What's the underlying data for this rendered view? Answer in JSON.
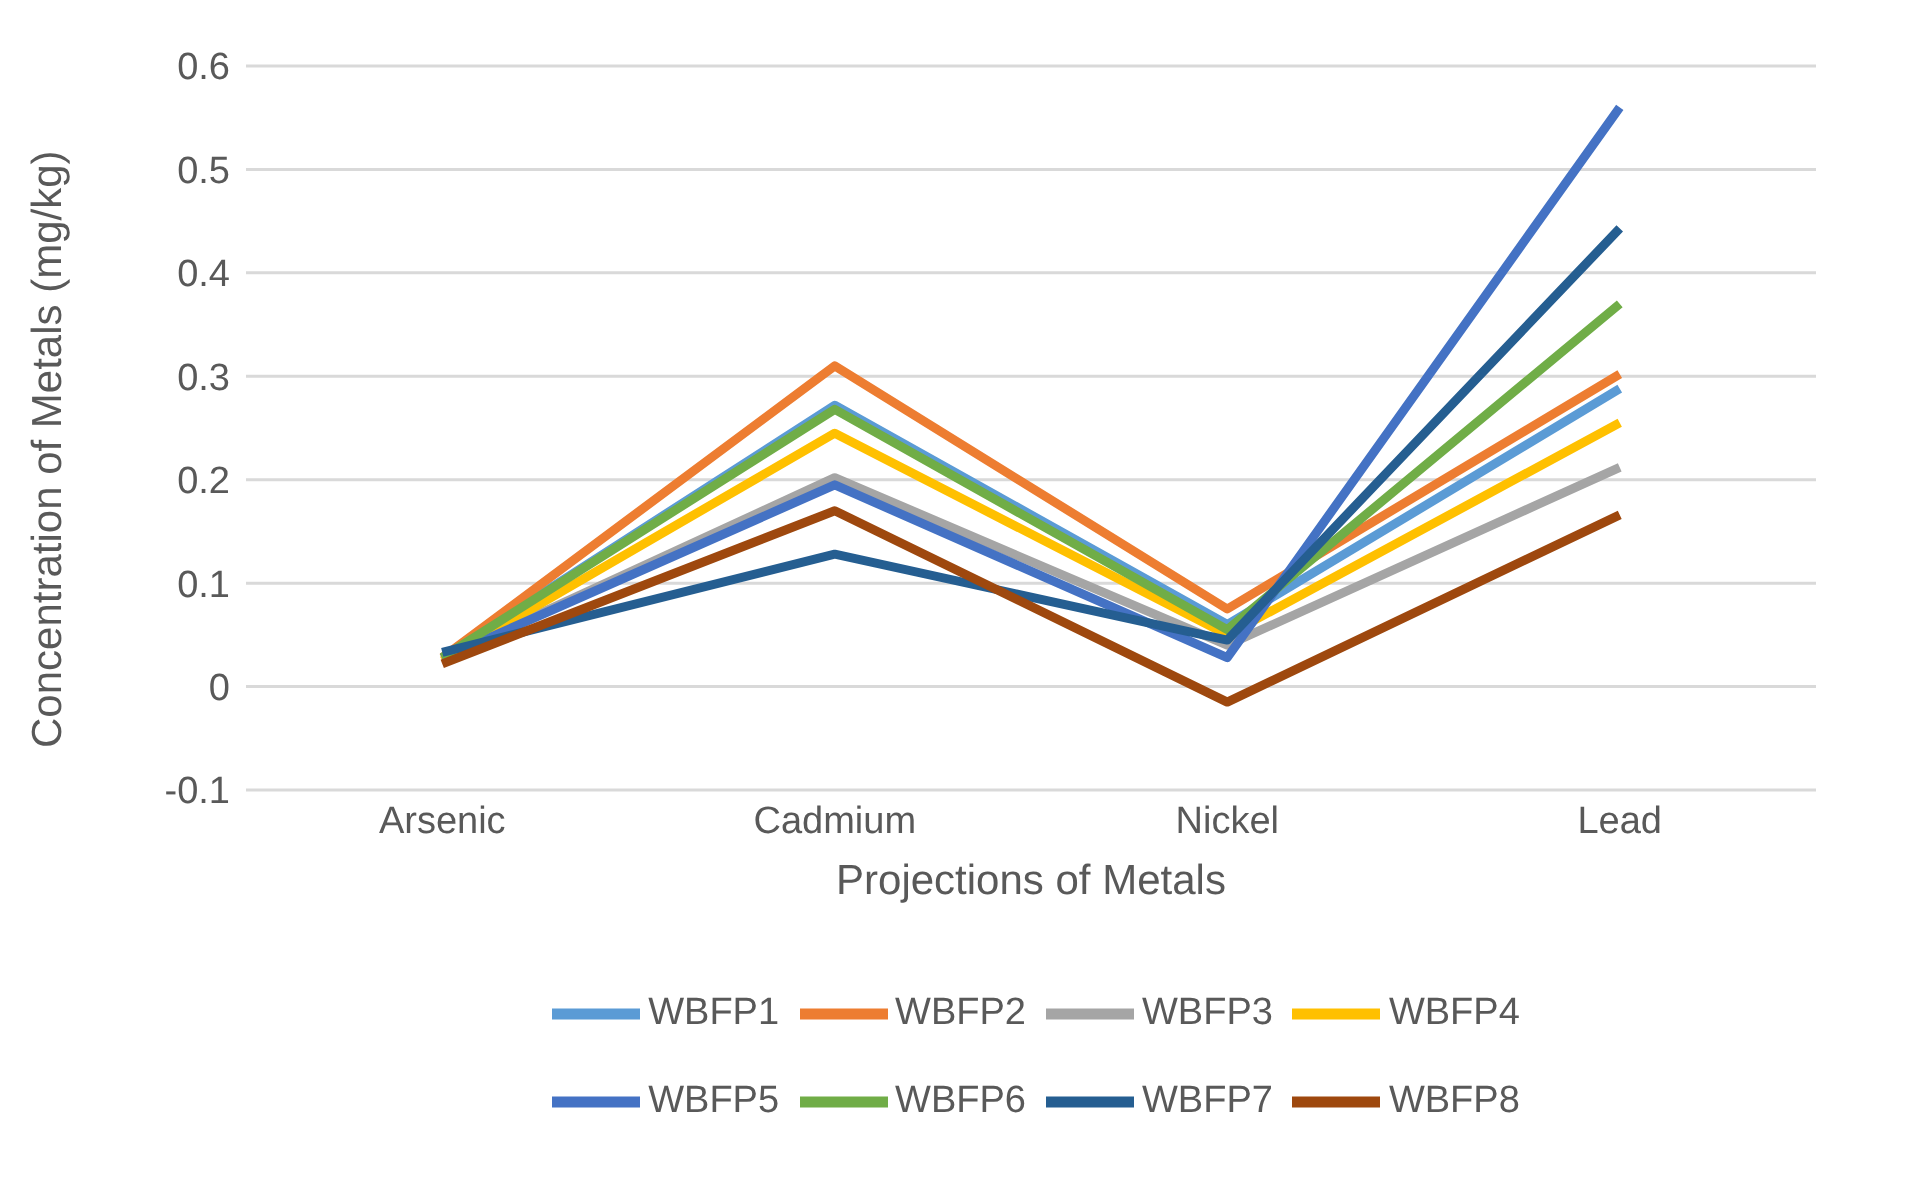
{
  "chart_data": {
    "type": "line",
    "xlabel": "Projections of Metals",
    "ylabel": "Concentration of Metals (mg/kg)",
    "categories": [
      "Arsenic",
      "Cadmium",
      "Nickel",
      "Lead"
    ],
    "series": [
      {
        "name": "WBFP1",
        "color": "#5b9bd5",
        "values": [
          0.028,
          0.272,
          0.06,
          0.288
        ]
      },
      {
        "name": "WBFP2",
        "color": "#ed7d31",
        "values": [
          0.028,
          0.31,
          0.075,
          0.302
        ]
      },
      {
        "name": "WBFP3",
        "color": "#a5a5a5",
        "values": [
          0.027,
          0.202,
          0.04,
          0.212
        ]
      },
      {
        "name": "WBFP4",
        "color": "#ffc000",
        "values": [
          0.025,
          0.245,
          0.05,
          0.255
        ]
      },
      {
        "name": "WBFP5",
        "color": "#4472c4",
        "values": [
          0.027,
          0.195,
          0.028,
          0.56
        ]
      },
      {
        "name": "WBFP6",
        "color": "#70ad47",
        "values": [
          0.028,
          0.268,
          0.055,
          0.37
        ]
      },
      {
        "name": "WBFP7",
        "color": "#255e91",
        "values": [
          0.033,
          0.128,
          0.045,
          0.443
        ]
      },
      {
        "name": "WBFP8",
        "color": "#9e480e",
        "values": [
          0.022,
          0.17,
          -0.015,
          0.166
        ]
      }
    ],
    "ylim": [
      -0.1,
      0.6
    ],
    "yticks": [
      -0.1,
      0,
      0.1,
      0.2,
      0.3,
      0.4,
      0.5,
      0.6
    ],
    "grid": "y",
    "legend": "bottom",
    "marker": "none",
    "line_style": "solid"
  }
}
